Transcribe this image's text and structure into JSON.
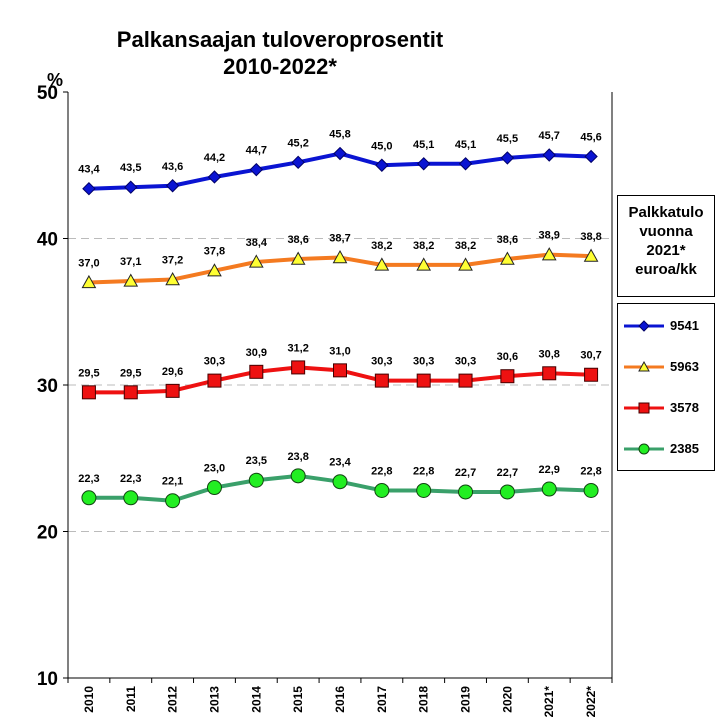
{
  "title_line1": "Palkansaajan tuloveroprosentit",
  "title_line2": "2010-2022*",
  "y_unit": "%",
  "legend_title": [
    "Palkkatulo",
    "vuonna",
    "2021*",
    "euroa/kk"
  ],
  "chart_data": {
    "type": "line",
    "title": "Palkansaajan tuloveroprosentit 2010-2022*",
    "categories": [
      "2010",
      "2011",
      "2012",
      "2013",
      "2014",
      "2015",
      "2016",
      "2017",
      "2018",
      "2019",
      "2020",
      "2021*",
      "2022*"
    ],
    "ylim": [
      10,
      50
    ],
    "yticks": [
      10,
      20,
      30,
      40,
      50
    ],
    "grid": true,
    "legend_position": "right",
    "series": [
      {
        "name": "9541",
        "color": "#0a14d2",
        "marker": "diamond",
        "values": [
          43.4,
          43.5,
          43.6,
          44.2,
          44.7,
          45.2,
          45.8,
          45.0,
          45.1,
          45.1,
          45.5,
          45.7,
          45.6
        ],
        "labels": [
          "43,4",
          "43,5",
          "43,6",
          "44,2",
          "44,7",
          "45,2",
          "45,8",
          "45,0",
          "45,1",
          "45,1",
          "45,5",
          "45,7",
          "45,6"
        ]
      },
      {
        "name": "5963",
        "color": "#f47a20",
        "marker": "triangle",
        "marker_fill": "#ffff33",
        "values": [
          37.0,
          37.1,
          37.2,
          37.8,
          38.4,
          38.6,
          38.7,
          38.2,
          38.2,
          38.2,
          38.6,
          38.9,
          38.8
        ],
        "labels": [
          "37,0",
          "37,1",
          "37,2",
          "37,8",
          "38,4",
          "38,6",
          "38,7",
          "38,2",
          "38,2",
          "38,2",
          "38,6",
          "38,9",
          "38,8"
        ]
      },
      {
        "name": "3578",
        "color": "#ee1111",
        "marker": "square",
        "values": [
          29.5,
          29.5,
          29.6,
          30.3,
          30.9,
          31.2,
          31.0,
          30.3,
          30.3,
          30.3,
          30.6,
          30.8,
          30.7
        ],
        "labels": [
          "29,5",
          "29,5",
          "29,6",
          "30,3",
          "30,9",
          "31,2",
          "31,0",
          "30,3",
          "30,3",
          "30,3",
          "30,6",
          "30,8",
          "30,7"
        ]
      },
      {
        "name": "2385",
        "color": "#3aa06a",
        "marker": "circle",
        "marker_fill": "#22ee22",
        "values": [
          22.3,
          22.3,
          22.1,
          23.0,
          23.5,
          23.8,
          23.4,
          22.8,
          22.8,
          22.7,
          22.7,
          22.9,
          22.8
        ],
        "labels": [
          "22,3",
          "22,3",
          "22,1",
          "23,0",
          "23,5",
          "23,8",
          "23,4",
          "22,8",
          "22,8",
          "22,7",
          "22,7",
          "22,9",
          "22,8"
        ]
      }
    ]
  }
}
